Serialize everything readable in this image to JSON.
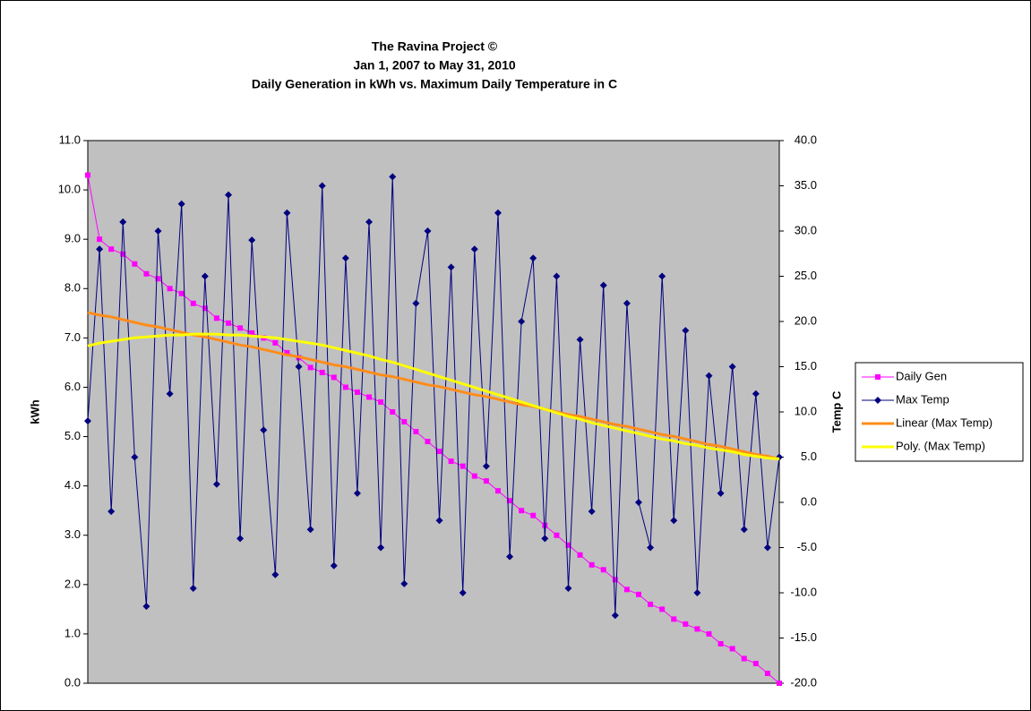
{
  "chart_data": {
    "type": "line",
    "title": [
      "The Ravina Project ©",
      "Jan 1, 2007 to May 31, 2010",
      "Daily Generation in kWh vs. Maximum Daily Temperature in C"
    ],
    "y_label": "kWh",
    "y2_label": "Temp C",
    "ylim": [
      0,
      11
    ],
    "yticks": [
      {
        "value": 0,
        "label": "0.0"
      },
      {
        "value": 1,
        "label": "1.0"
      },
      {
        "value": 2,
        "label": "2.0"
      },
      {
        "value": 3,
        "label": "3.0"
      },
      {
        "value": 4,
        "label": "4.0"
      },
      {
        "value": 5,
        "label": "5.0"
      },
      {
        "value": 6,
        "label": "6.0"
      },
      {
        "value": 7,
        "label": "7.0"
      },
      {
        "value": 8,
        "label": "8.0"
      },
      {
        "value": 9,
        "label": "9.0"
      },
      {
        "value": 10,
        "label": "10.0"
      },
      {
        "value": 11,
        "label": "11.0"
      }
    ],
    "y2lim": [
      -20,
      40
    ],
    "y2ticks": [
      {
        "value": -20,
        "label": "-20.0"
      },
      {
        "value": -15,
        "label": "-15.0"
      },
      {
        "value": -10,
        "label": "-10.0"
      },
      {
        "value": -5,
        "label": "-5.0"
      },
      {
        "value": 0,
        "label": "0.0"
      },
      {
        "value": 5,
        "label": "5.0"
      },
      {
        "value": 10,
        "label": "10.0"
      },
      {
        "value": 15,
        "label": "15.0"
      },
      {
        "value": 20,
        "label": "20.0"
      },
      {
        "value": 25,
        "label": "25.0"
      },
      {
        "value": 30,
        "label": "30.0"
      },
      {
        "value": 35,
        "label": "35.0"
      },
      {
        "value": 40,
        "label": "40.0"
      }
    ],
    "plot_background": "#c0c0c0",
    "series": [
      {
        "name": "Daily Gen",
        "color": "#ff00ff",
        "marker": "square",
        "values": [
          10.3,
          9.0,
          8.8,
          8.7,
          8.5,
          8.3,
          8.2,
          8.0,
          7.9,
          7.7,
          7.6,
          7.4,
          7.3,
          7.2,
          7.1,
          7.0,
          6.9,
          6.7,
          6.6,
          6.4,
          6.3,
          6.2,
          6.0,
          5.9,
          5.8,
          5.7,
          5.5,
          5.3,
          5.1,
          4.9,
          4.7,
          4.5,
          4.4,
          4.2,
          4.1,
          3.9,
          3.7,
          3.5,
          3.4,
          3.2,
          3.0,
          2.8,
          2.6,
          2.4,
          2.3,
          2.1,
          1.9,
          1.8,
          1.6,
          1.5,
          1.3,
          1.2,
          1.1,
          1.0,
          0.8,
          0.7,
          0.5,
          0.4,
          0.2,
          0.0
        ]
      },
      {
        "name": "Max Temp",
        "color": "#000080",
        "marker": "diamond",
        "axis": "y2",
        "values": [
          9.0,
          28.0,
          -1.0,
          31.0,
          5.0,
          -11.5,
          30.0,
          12.0,
          33.0,
          -9.5,
          25.0,
          2.0,
          34.0,
          -4.0,
          29.0,
          8.0,
          -8.0,
          32.0,
          15.0,
          -3.0,
          35.0,
          -7.0,
          27.0,
          1.0,
          31.0,
          -5.0,
          36.0,
          -9.0,
          22.0,
          30.0,
          -2.0,
          26.0,
          -10.0,
          28.0,
          4.0,
          32.0,
          -6.0,
          20.0,
          27.0,
          -4.0,
          25.0,
          -9.5,
          18.0,
          -1.0,
          24.0,
          -12.5,
          22.0,
          0.0,
          -5.0,
          25.0,
          -2.0,
          19.0,
          -10.0,
          14.0,
          1.0,
          15.0,
          -3.0,
          12.0,
          -5.0,
          5.0
        ]
      },
      {
        "name": "Linear (Max Temp)",
        "color": "#ff8c1a",
        "axis": "y2",
        "values": [
          21.0,
          20.7,
          20.5,
          20.2,
          19.9,
          19.6,
          19.4,
          19.1,
          18.8,
          18.5,
          18.3,
          18.0,
          17.7,
          17.4,
          17.2,
          16.9,
          16.6,
          16.3,
          16.1,
          15.8,
          15.5,
          15.2,
          15.0,
          14.7,
          14.4,
          14.1,
          13.9,
          13.6,
          13.3,
          13.0,
          12.8,
          12.5,
          12.2,
          11.9,
          11.7,
          11.4,
          11.1,
          10.8,
          10.6,
          10.3,
          10.0,
          9.7,
          9.5,
          9.2,
          8.9,
          8.6,
          8.4,
          8.1,
          7.8,
          7.5,
          7.3,
          7.0,
          6.7,
          6.4,
          6.2,
          5.9,
          5.6,
          5.3,
          5.1,
          4.8
        ]
      },
      {
        "name": "Poly. (Max Temp)",
        "color": "#ffff00",
        "axis": "y2",
        "values": [
          17.3,
          17.6,
          17.8,
          18.0,
          18.2,
          18.3,
          18.4,
          18.5,
          18.5,
          18.6,
          18.6,
          18.6,
          18.5,
          18.5,
          18.4,
          18.3,
          18.2,
          18.0,
          17.8,
          17.6,
          17.4,
          17.1,
          16.8,
          16.5,
          16.2,
          15.8,
          15.5,
          15.1,
          14.7,
          14.3,
          13.9,
          13.5,
          13.1,
          12.7,
          12.3,
          11.9,
          11.5,
          11.1,
          10.7,
          10.3,
          9.9,
          9.5,
          9.2,
          8.8,
          8.5,
          8.2,
          7.9,
          7.6,
          7.3,
          7.0,
          6.8,
          6.5,
          6.3,
          6.0,
          5.8,
          5.6,
          5.3,
          5.1,
          4.9,
          4.8
        ]
      }
    ]
  }
}
